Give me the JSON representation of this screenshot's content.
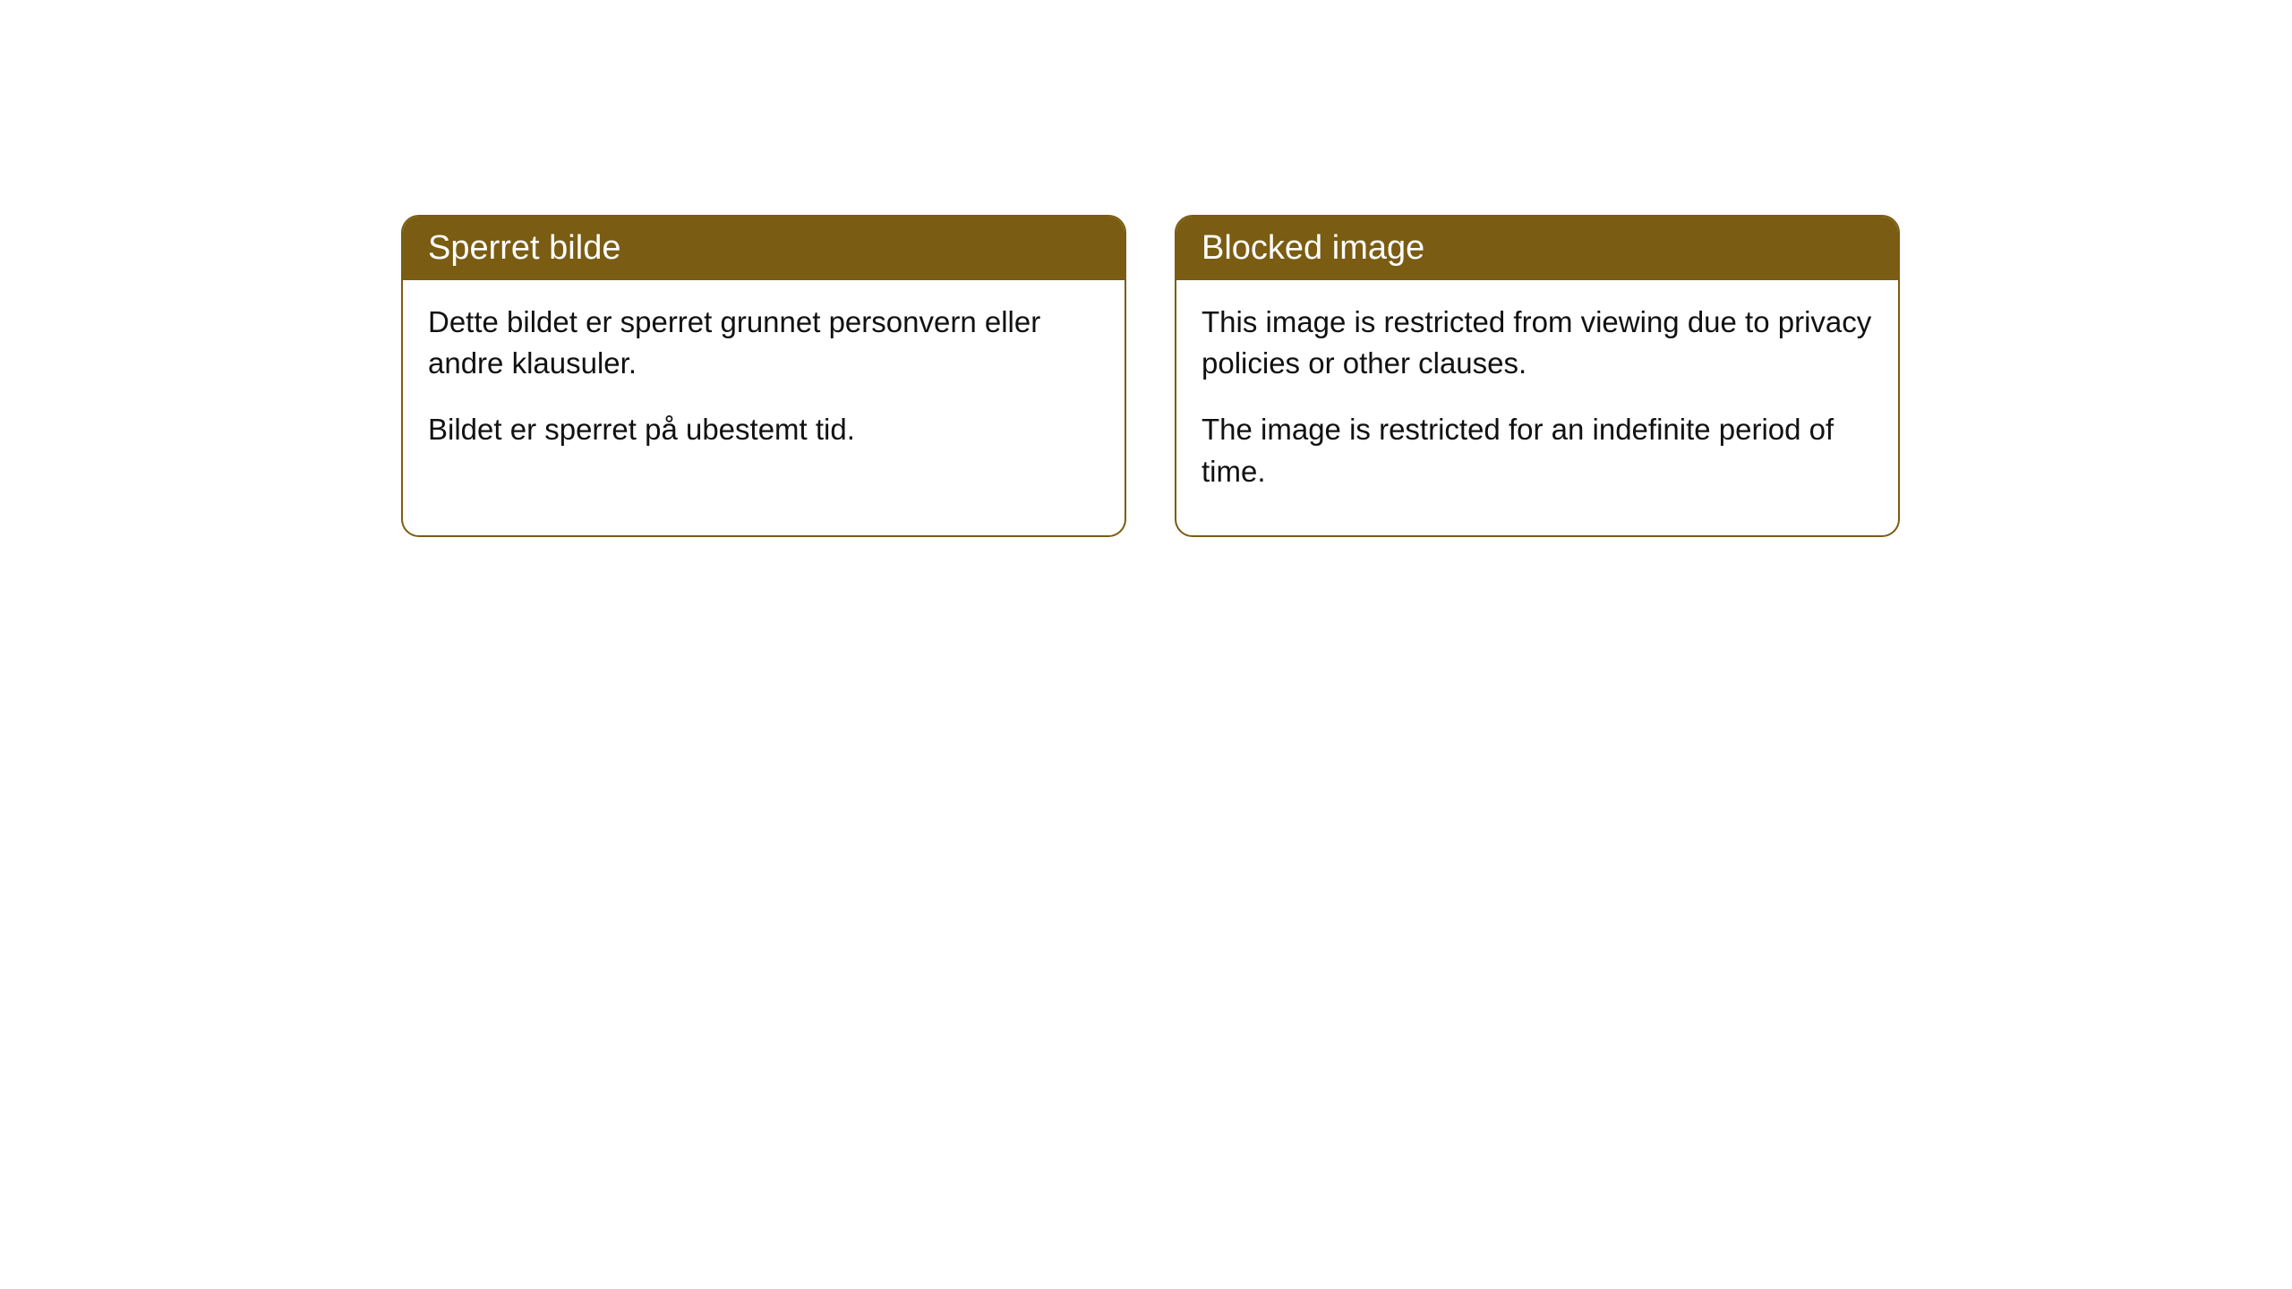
{
  "cards": [
    {
      "title": "Sperret bilde",
      "paragraph1": "Dette bildet er sperret grunnet personvern eller andre klausuler.",
      "paragraph2": "Bildet er sperret på ubestemt tid."
    },
    {
      "title": "Blocked image",
      "paragraph1": "This image is restricted from viewing due to privacy policies or other clauses.",
      "paragraph2": "The image is restricted for an indefinite period of time."
    }
  ],
  "styling": {
    "header_background": "#7a5c12",
    "header_text_color": "#ffffff",
    "body_text_color": "#111111",
    "card_border_color": "#7a5c12",
    "card_background": "#ffffff",
    "page_background": "#ffffff",
    "border_radius": 20,
    "header_fontsize": 38,
    "body_fontsize": 33
  }
}
